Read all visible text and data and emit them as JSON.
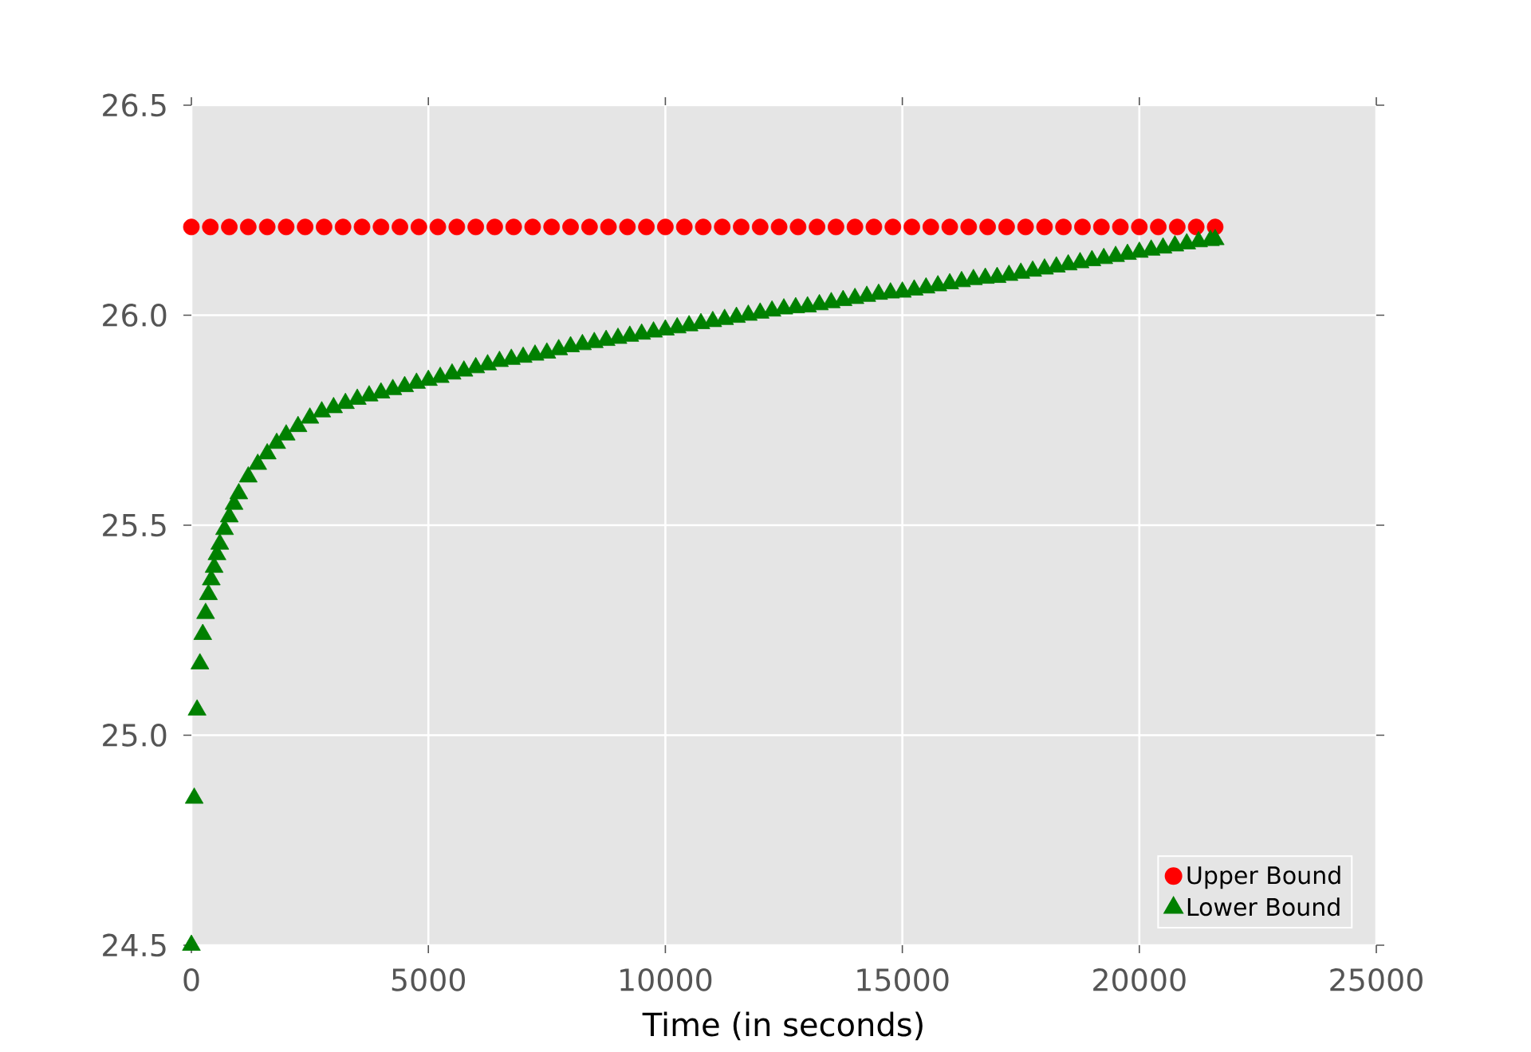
{
  "chart_data": {
    "type": "scatter",
    "xlabel": "Time (in seconds)",
    "x": [
      0,
      60,
      120,
      180,
      240,
      300,
      360,
      420,
      480,
      540,
      600,
      700,
      800,
      900,
      1000,
      1200,
      1400,
      1600,
      1800,
      2000,
      2250,
      2500,
      2750,
      3000,
      3250,
      3500,
      3750,
      4000,
      4250,
      4500,
      4750,
      5000,
      5250,
      5500,
      5750,
      6000,
      6250,
      6500,
      6750,
      7000,
      7250,
      7500,
      7750,
      8000,
      8250,
      8500,
      8750,
      9000,
      9250,
      9500,
      9750,
      10000,
      10250,
      10500,
      10750,
      11000,
      11250,
      11500,
      11750,
      12000,
      12250,
      12500,
      12750,
      13000,
      13250,
      13500,
      13750,
      14000,
      14250,
      14500,
      14750,
      15000,
      15250,
      15500,
      15750,
      16000,
      16250,
      16500,
      16750,
      17000,
      17250,
      17500,
      17750,
      18000,
      18250,
      18500,
      18750,
      19000,
      19250,
      19500,
      19750,
      20000,
      20250,
      20500,
      20750,
      21000,
      21250,
      21500,
      21600
    ],
    "series": [
      {
        "name": "Upper Bound",
        "color": "#ff0000",
        "marker": "circle",
        "x": [
          0,
          400,
          800,
          1200,
          1600,
          2000,
          2400,
          2800,
          3200,
          3600,
          4000,
          4400,
          4800,
          5200,
          5600,
          6000,
          6400,
          6800,
          7200,
          7600,
          8000,
          8400,
          8800,
          9200,
          9600,
          10000,
          10400,
          10800,
          11200,
          11600,
          12000,
          12400,
          12800,
          13200,
          13600,
          14000,
          14400,
          14800,
          15200,
          15600,
          16000,
          16400,
          16800,
          17200,
          17600,
          18000,
          18400,
          18800,
          19200,
          19600,
          20000,
          20400,
          20800,
          21200,
          21600
        ],
        "values": [
          26.21,
          26.21,
          26.21,
          26.21,
          26.21,
          26.21,
          26.21,
          26.21,
          26.21,
          26.21,
          26.21,
          26.21,
          26.21,
          26.21,
          26.21,
          26.21,
          26.21,
          26.21,
          26.21,
          26.21,
          26.21,
          26.21,
          26.21,
          26.21,
          26.21,
          26.21,
          26.21,
          26.21,
          26.21,
          26.21,
          26.21,
          26.21,
          26.21,
          26.21,
          26.21,
          26.21,
          26.21,
          26.21,
          26.21,
          26.21,
          26.21,
          26.21,
          26.21,
          26.21,
          26.21,
          26.21,
          26.21,
          26.21,
          26.21,
          26.21,
          26.21,
          26.21,
          26.21,
          26.21,
          26.21
        ]
      },
      {
        "name": "Lower Bound",
        "color": "#008000",
        "marker": "triangle",
        "values": [
          24.5,
          24.85,
          25.06,
          25.17,
          25.24,
          25.29,
          25.335,
          25.37,
          25.4,
          25.43,
          25.455,
          25.49,
          25.52,
          25.55,
          25.575,
          25.615,
          25.645,
          25.67,
          25.695,
          25.715,
          25.735,
          25.755,
          25.77,
          25.78,
          25.79,
          25.8,
          25.808,
          25.815,
          25.823,
          25.83,
          25.838,
          25.845,
          25.852,
          25.86,
          25.867,
          25.875,
          25.882,
          25.89,
          25.895,
          25.9,
          25.905,
          25.91,
          25.918,
          25.925,
          25.93,
          25.935,
          25.94,
          25.945,
          25.95,
          25.955,
          25.96,
          25.965,
          25.97,
          25.975,
          25.98,
          25.985,
          25.99,
          25.995,
          26.0,
          26.005,
          26.01,
          26.015,
          26.018,
          26.02,
          26.025,
          26.03,
          26.035,
          26.04,
          26.045,
          26.05,
          26.053,
          26.055,
          26.06,
          26.065,
          26.07,
          26.075,
          26.08,
          26.085,
          26.088,
          26.09,
          26.095,
          26.1,
          26.105,
          26.11,
          26.115,
          26.12,
          26.125,
          26.13,
          26.135,
          26.14,
          26.145,
          26.15,
          26.155,
          26.16,
          26.165,
          26.17,
          26.175,
          26.178,
          26.18
        ]
      }
    ],
    "xlim": [
      0,
      25000
    ],
    "ylim": [
      24.5,
      26.5
    ],
    "xticks": [
      0,
      5000,
      10000,
      15000,
      20000,
      25000
    ],
    "yticks": [
      {
        "value": 24.5,
        "label": "24.5"
      },
      {
        "value": 25.0,
        "label": "25.0"
      },
      {
        "value": 25.5,
        "label": "25.5"
      },
      {
        "value": 26.0,
        "label": "26.0"
      },
      {
        "value": 26.5,
        "label": "26.5"
      }
    ],
    "grid": true,
    "legend": "bottom right"
  }
}
